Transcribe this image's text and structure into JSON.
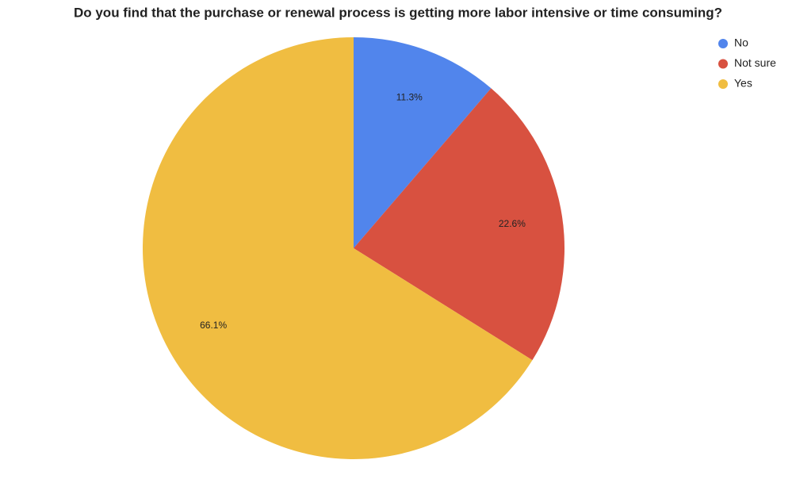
{
  "chart_data": {
    "type": "pie",
    "title": "Do you find that the purchase or renewal process is getting more labor intensive or time consuming?",
    "categories": [
      "No",
      "Not sure",
      "Yes"
    ],
    "values": [
      11.3,
      22.6,
      66.1
    ],
    "value_labels": [
      "11.3%",
      "22.6%",
      "66.1%"
    ],
    "colors": [
      "#5185ec",
      "#d85140",
      "#f0bd41"
    ],
    "legend": "top-right"
  }
}
